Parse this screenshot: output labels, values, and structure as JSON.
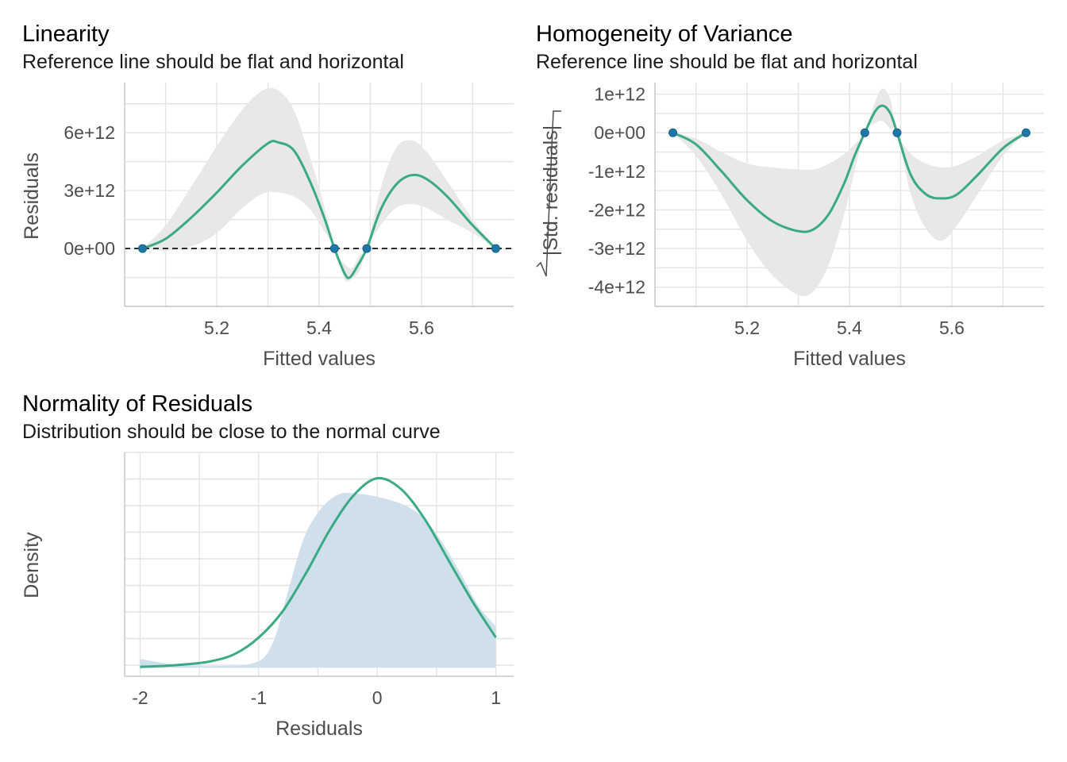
{
  "colors": {
    "line": "#3aaa85",
    "point": "#1f77a8",
    "band": "#e8e8e8",
    "density_fill": "#cfdfec",
    "grid": "#e4e4e4",
    "axis": "#c8c8c8"
  },
  "chart_data": [
    {
      "type": "scatter",
      "title": "Linearity",
      "subtitle": "Reference line should be flat and horizontal",
      "xlabel": "Fitted values",
      "ylabel": "Residuals",
      "xlim": [
        5.02,
        5.78
      ],
      "ylim": [
        -3000000000000.0,
        8600000000000.0
      ],
      "xticks": [
        {
          "v": 5.2,
          "label": "5.2"
        },
        {
          "v": 5.4,
          "label": "5.4"
        },
        {
          "v": 5.6,
          "label": "5.6"
        }
      ],
      "yticks": [
        {
          "v": 0,
          "label": "0e+00"
        },
        {
          "v": 3000000000000.0,
          "label": "3e+12"
        },
        {
          "v": 6000000000000.0,
          "label": "6e+12"
        }
      ],
      "reference_line_y": 0,
      "points": [
        {
          "x": 5.055,
          "y": 0
        },
        {
          "x": 5.43,
          "y": 0
        },
        {
          "x": 5.493,
          "y": 0
        },
        {
          "x": 5.745,
          "y": 0
        }
      ],
      "smooth": [
        [
          5.055,
          0
        ],
        [
          5.1,
          500000000000.0
        ],
        [
          5.15,
          1600000000000.0
        ],
        [
          5.2,
          2900000000000.0
        ],
        [
          5.25,
          4300000000000.0
        ],
        [
          5.3,
          5450000000000.0
        ],
        [
          5.32,
          5500000000000.0
        ],
        [
          5.35,
          5100000000000.0
        ],
        [
          5.38,
          3600000000000.0
        ],
        [
          5.41,
          1600000000000.0
        ],
        [
          5.43,
          0
        ],
        [
          5.45,
          -1300000000000.0
        ],
        [
          5.46,
          -1500000000000.0
        ],
        [
          5.475,
          -900000000000.0
        ],
        [
          5.493,
          0
        ],
        [
          5.52,
          2000000000000.0
        ],
        [
          5.55,
          3300000000000.0
        ],
        [
          5.58,
          3800000000000.0
        ],
        [
          5.61,
          3600000000000.0
        ],
        [
          5.65,
          2700000000000.0
        ],
        [
          5.7,
          1200000000000.0
        ],
        [
          5.745,
          0
        ]
      ],
      "band_upper": [
        [
          5.055,
          0
        ],
        [
          5.1,
          1200000000000.0
        ],
        [
          5.15,
          3200000000000.0
        ],
        [
          5.2,
          5300000000000.0
        ],
        [
          5.25,
          7200000000000.0
        ],
        [
          5.29,
          8200000000000.0
        ],
        [
          5.32,
          8200000000000.0
        ],
        [
          5.35,
          7200000000000.0
        ],
        [
          5.38,
          4900000000000.0
        ],
        [
          5.41,
          2200000000000.0
        ],
        [
          5.43,
          0
        ],
        [
          5.45,
          -800000000000.0
        ],
        [
          5.465,
          -1000000000000.0
        ],
        [
          5.48,
          -300000000000.0
        ],
        [
          5.493,
          0
        ],
        [
          5.52,
          3100000000000.0
        ],
        [
          5.55,
          5200000000000.0
        ],
        [
          5.58,
          5600000000000.0
        ],
        [
          5.61,
          5000000000000.0
        ],
        [
          5.65,
          3500000000000.0
        ],
        [
          5.7,
          1500000000000.0
        ],
        [
          5.745,
          0
        ]
      ],
      "band_lower": [
        [
          5.055,
          0
        ],
        [
          5.1,
          -100000000000.0
        ],
        [
          5.15,
          100000000000.0
        ],
        [
          5.2,
          800000000000.0
        ],
        [
          5.25,
          2100000000000.0
        ],
        [
          5.29,
          2850000000000.0
        ],
        [
          5.32,
          2900000000000.0
        ],
        [
          5.35,
          2700000000000.0
        ],
        [
          5.38,
          2100000000000.0
        ],
        [
          5.41,
          900000000000.0
        ],
        [
          5.43,
          0
        ],
        [
          5.45,
          -1600000000000.0
        ],
        [
          5.465,
          -1550000000000.0
        ],
        [
          5.48,
          -1100000000000.0
        ],
        [
          5.493,
          0
        ],
        [
          5.52,
          1200000000000.0
        ],
        [
          5.55,
          2100000000000.0
        ],
        [
          5.58,
          2300000000000.0
        ],
        [
          5.61,
          2100000000000.0
        ],
        [
          5.65,
          1500000000000.0
        ],
        [
          5.7,
          800000000000.0
        ],
        [
          5.745,
          0
        ]
      ]
    },
    {
      "type": "scatter",
      "title": "Homogeneity of Variance",
      "subtitle": "Reference line should be flat and horizontal",
      "xlabel": "Fitted values",
      "ylabel": "|Std. residuals|",
      "xlim": [
        5.02,
        5.78
      ],
      "ylim": [
        -4500000000000.0,
        1300000000000.0
      ],
      "xticks": [
        {
          "v": 5.2,
          "label": "5.2"
        },
        {
          "v": 5.4,
          "label": "5.4"
        },
        {
          "v": 5.6,
          "label": "5.6"
        }
      ],
      "yticks": [
        {
          "v": 1000000000000.0,
          "label": "1e+12"
        },
        {
          "v": 0,
          "label": "0e+00"
        },
        {
          "v": -1000000000000.0,
          "label": "-1e+12"
        },
        {
          "v": -2000000000000.0,
          "label": "-2e+12"
        },
        {
          "v": -3000000000000.0,
          "label": "-3e+12"
        },
        {
          "v": -4000000000000.0,
          "label": "-4e+12"
        }
      ],
      "points": [
        {
          "x": 5.055,
          "y": 0
        },
        {
          "x": 5.43,
          "y": 0
        },
        {
          "x": 5.493,
          "y": 0
        },
        {
          "x": 5.745,
          "y": 0
        }
      ],
      "smooth": [
        [
          5.055,
          0
        ],
        [
          5.1,
          -300000000000.0
        ],
        [
          5.15,
          -1000000000000.0
        ],
        [
          5.2,
          -1750000000000.0
        ],
        [
          5.25,
          -2300000000000.0
        ],
        [
          5.3,
          -2550000000000.0
        ],
        [
          5.33,
          -2500000000000.0
        ],
        [
          5.36,
          -2100000000000.0
        ],
        [
          5.39,
          -1300000000000.0
        ],
        [
          5.41,
          -600000000000.0
        ],
        [
          5.43,
          0
        ],
        [
          5.45,
          550000000000.0
        ],
        [
          5.465,
          700000000000.0
        ],
        [
          5.48,
          500000000000.0
        ],
        [
          5.493,
          0
        ],
        [
          5.52,
          -1100000000000.0
        ],
        [
          5.55,
          -1600000000000.0
        ],
        [
          5.58,
          -1700000000000.0
        ],
        [
          5.61,
          -1600000000000.0
        ],
        [
          5.65,
          -1100000000000.0
        ],
        [
          5.7,
          -400000000000.0
        ],
        [
          5.745,
          0
        ]
      ],
      "band_upper": [
        [
          5.055,
          0
        ],
        [
          5.1,
          -150000000000.0
        ],
        [
          5.15,
          -500000000000.0
        ],
        [
          5.2,
          -800000000000.0
        ],
        [
          5.25,
          -900000000000.0
        ],
        [
          5.3,
          -950000000000.0
        ],
        [
          5.33,
          -950000000000.0
        ],
        [
          5.36,
          -800000000000.0
        ],
        [
          5.39,
          -550000000000.0
        ],
        [
          5.41,
          -300000000000.0
        ],
        [
          5.43,
          0
        ],
        [
          5.45,
          800000000000.0
        ],
        [
          5.465,
          1150000000000.0
        ],
        [
          5.48,
          850000000000.0
        ],
        [
          5.493,
          0
        ],
        [
          5.52,
          -550000000000.0
        ],
        [
          5.55,
          -800000000000.0
        ],
        [
          5.58,
          -900000000000.0
        ],
        [
          5.61,
          -850000000000.0
        ],
        [
          5.65,
          -600000000000.0
        ],
        [
          5.7,
          -200000000000.0
        ],
        [
          5.745,
          0
        ]
      ],
      "band_lower": [
        [
          5.055,
          0
        ],
        [
          5.1,
          -600000000000.0
        ],
        [
          5.15,
          -1600000000000.0
        ],
        [
          5.2,
          -2800000000000.0
        ],
        [
          5.25,
          -3700000000000.0
        ],
        [
          5.3,
          -4200000000000.0
        ],
        [
          5.33,
          -4100000000000.0
        ],
        [
          5.36,
          -3400000000000.0
        ],
        [
          5.39,
          -2100000000000.0
        ],
        [
          5.41,
          -1000000000000.0
        ],
        [
          5.43,
          0
        ],
        [
          5.45,
          250000000000.0
        ],
        [
          5.465,
          300000000000.0
        ],
        [
          5.48,
          100000000000.0
        ],
        [
          5.493,
          0
        ],
        [
          5.52,
          -1600000000000.0
        ],
        [
          5.55,
          -2500000000000.0
        ],
        [
          5.58,
          -2800000000000.0
        ],
        [
          5.61,
          -2400000000000.0
        ],
        [
          5.65,
          -1600000000000.0
        ],
        [
          5.7,
          -600000000000.0
        ],
        [
          5.745,
          0
        ]
      ]
    },
    {
      "type": "area",
      "title": "Normality of Residuals",
      "subtitle": "Distribution should be close to the normal curve",
      "xlabel": "Residuals",
      "ylabel": "Density",
      "xlim": [
        -2.13,
        1.15
      ],
      "ylim": [
        -0.02,
        0.5
      ],
      "xticks": [
        {
          "v": -2,
          "label": "-2"
        },
        {
          "v": -1,
          "label": "-1"
        },
        {
          "v": 0,
          "label": "0"
        },
        {
          "v": 1,
          "label": "1"
        }
      ],
      "density_area": [
        [
          -2,
          0.02
        ],
        [
          -1.85,
          0.013
        ],
        [
          -1.7,
          0.007
        ],
        [
          -1.5,
          0.004
        ],
        [
          -1.3,
          0.004
        ],
        [
          -1.1,
          0.007
        ],
        [
          -0.95,
          0.025
        ],
        [
          -0.85,
          0.08
        ],
        [
          -0.75,
          0.18
        ],
        [
          -0.62,
          0.3
        ],
        [
          -0.5,
          0.36
        ],
        [
          -0.4,
          0.39
        ],
        [
          -0.3,
          0.405
        ],
        [
          -0.2,
          0.405
        ],
        [
          -0.05,
          0.4
        ],
        [
          0.1,
          0.39
        ],
        [
          0.25,
          0.375
        ],
        [
          0.4,
          0.345
        ],
        [
          0.55,
          0.29
        ],
        [
          0.7,
          0.22
        ],
        [
          0.85,
          0.145
        ],
        [
          1,
          0.095
        ]
      ],
      "normal_curve": [
        [
          -2,
          0.002
        ],
        [
          -1.8,
          0.004
        ],
        [
          -1.6,
          0.008
        ],
        [
          -1.4,
          0.015
        ],
        [
          -1.2,
          0.032
        ],
        [
          -1.0,
          0.07
        ],
        [
          -0.8,
          0.13
        ],
        [
          -0.6,
          0.22
        ],
        [
          -0.4,
          0.32
        ],
        [
          -0.2,
          0.4
        ],
        [
          0,
          0.44
        ],
        [
          0.2,
          0.415
        ],
        [
          0.4,
          0.345
        ],
        [
          0.6,
          0.25
        ],
        [
          0.8,
          0.155
        ],
        [
          1.0,
          0.07
        ]
      ]
    }
  ]
}
